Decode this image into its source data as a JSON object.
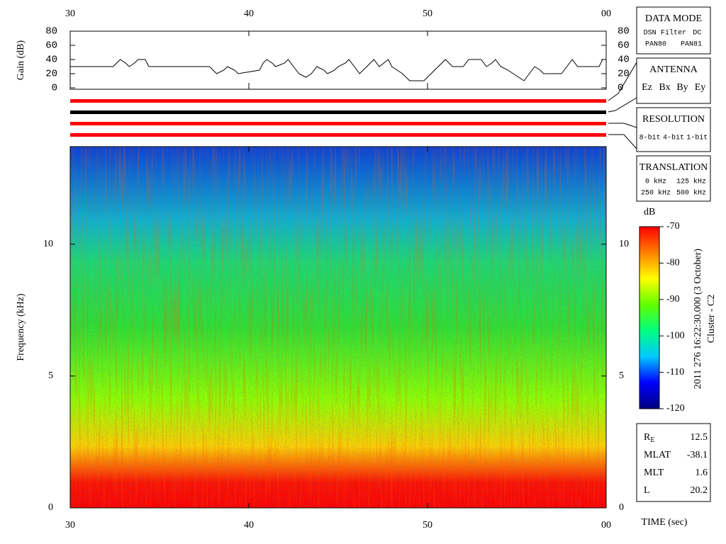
{
  "chart_data": [
    {
      "type": "line",
      "ylabel": "Gain (dB)",
      "x": [
        30,
        32.4,
        32.6,
        32.8,
        33.1,
        33.3,
        33.6,
        33.8,
        34.2,
        34.4,
        37.8,
        38.0,
        38.2,
        38.6,
        38.8,
        39.2,
        39.4,
        40.6,
        40.8,
        41.0,
        41.3,
        41.5,
        42.0,
        42.2,
        42.5,
        42.8,
        43.2,
        43.5,
        43.8,
        44.2,
        44.4,
        44.8,
        45.0,
        45.4,
        45.6,
        45.9,
        46.2,
        46.6,
        47.0,
        47.3,
        47.8,
        48.0,
        48.6,
        49.0,
        49.8,
        50.2,
        50.6,
        51.0,
        51.4,
        52.0,
        52.3,
        53.0,
        53.3,
        53.6,
        53.8,
        54.1,
        54.5,
        54.8,
        55.1,
        55.4,
        55.7,
        56.0,
        56.3,
        56.5,
        57.5,
        57.8,
        58.1,
        58.4,
        59.6,
        59.8,
        60
      ],
      "values": [
        30,
        30,
        35,
        40,
        35,
        30,
        35,
        40,
        40,
        30,
        30,
        25,
        20,
        25,
        30,
        25,
        20,
        25,
        35,
        40,
        35,
        30,
        35,
        40,
        30,
        20,
        15,
        20,
        30,
        25,
        20,
        25,
        30,
        35,
        40,
        30,
        20,
        30,
        40,
        30,
        40,
        30,
        20,
        10,
        10,
        20,
        30,
        40,
        30,
        30,
        40,
        40,
        30,
        35,
        40,
        30,
        25,
        20,
        15,
        10,
        20,
        30,
        25,
        20,
        20,
        30,
        40,
        30,
        30,
        40,
        40
      ],
      "color": "#000000",
      "xlim": [
        30,
        60
      ],
      "xticks": [
        30,
        40,
        50,
        {
          "value": 60,
          "label": "00"
        }
      ],
      "ylim": [
        0,
        80
      ],
      "yticks": [
        0,
        20,
        40,
        60,
        80
      ]
    },
    {
      "type": "spectrogram",
      "ylabel": "Frequency (kHz)",
      "xlabel": "TIME (sec)",
      "xlim": [
        30,
        60
      ],
      "xticks": [
        30,
        40,
        50,
        {
          "value": 60,
          "label": "00"
        }
      ],
      "ylim": [
        0,
        13.7
      ],
      "yticks": [
        0,
        5,
        10
      ]
    },
    {
      "type": "colorbar",
      "title": "dB",
      "ylim": [
        -120,
        -70
      ],
      "yticks": [
        -120,
        -110,
        -100,
        -90,
        -80,
        -70
      ],
      "colormap": [
        "#000080",
        "#0000ff",
        "#00c8ff",
        "#00ff80",
        "#60ff00",
        "#ffff00",
        "#ff8000",
        "#ff0000"
      ]
    }
  ],
  "date": "2011 276 16:22:30.000 (3 October)",
  "spacecraft": "Cluster - C2",
  "panels": [
    {
      "title": "DATA MODE",
      "rows": [
        [
          {
            "text": "DSN",
            "color": "#ff0000"
          },
          {
            "text": "Filter",
            "color": "#00c000"
          },
          {
            "text": "DC",
            "color": "#0000ff"
          }
        ],
        [
          {
            "text": "PAN80",
            "color": "#000000"
          },
          {
            "text": "PAN81",
            "color": "#00c8c8"
          }
        ]
      ]
    },
    {
      "title": "ANTENNA",
      "rows": [
        [
          {
            "text": "Ez",
            "color": "#ff0000"
          },
          {
            "text": "Bx",
            "color": "#00c000"
          },
          {
            "text": "By",
            "color": "#0000ff"
          },
          {
            "text": "Ey",
            "color": "#000000"
          }
        ]
      ]
    },
    {
      "title": "RESOLUTION",
      "rows": [
        [
          {
            "text": "8-bit",
            "color": "#ff0000"
          },
          {
            "text": "4-bit",
            "color": "#00c000"
          },
          {
            "text": "1-bit",
            "color": "#0000ff"
          }
        ]
      ]
    },
    {
      "title": "TRANSLATION",
      "rows": [
        [
          {
            "text": "0 kHz",
            "color": "#ff0000"
          },
          {
            "text": "125 kHz",
            "color": "#00c000"
          }
        ],
        [
          {
            "text": "250 kHz",
            "color": "#0000ff"
          },
          {
            "text": "500 kHz",
            "color": "#000000"
          }
        ]
      ]
    }
  ],
  "info": [
    {
      "label": "R",
      "sub": "E",
      "value": 12.5
    },
    {
      "label": "MLAT",
      "value": -38.1
    },
    {
      "label": "MLT",
      "value": 1.6
    },
    {
      "label": "L",
      "value": 20.2
    }
  ]
}
